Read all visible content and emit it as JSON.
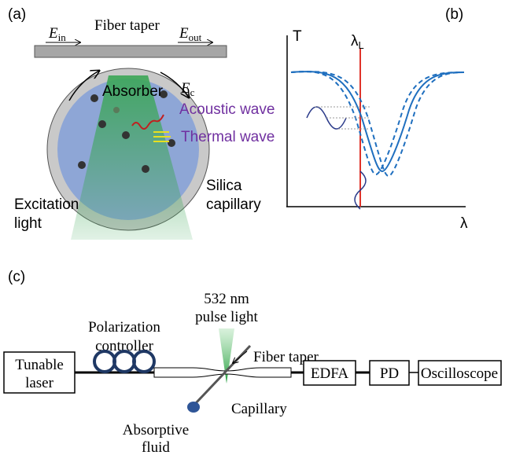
{
  "panel_a": {
    "label": "(a)",
    "fiber_taper": "Fiber taper",
    "e_in": {
      "symbol": "E",
      "subscript": "in"
    },
    "e_out": {
      "symbol": "E",
      "subscript": "out"
    },
    "e_c": {
      "symbol": "E",
      "subscript": "c"
    },
    "absorber": "Absorber",
    "acoustic_wave": "Acoustic wave",
    "thermal_wave": "Thermal wave",
    "excitation_light": [
      "Excitation",
      "light"
    ],
    "silica_capillary": [
      "Silica",
      "capillary"
    ]
  },
  "panel_b": {
    "label": "(b)",
    "y_axis": "T",
    "x_axis": "λ",
    "laser_line": {
      "symbol": "λ",
      "subscript": "L"
    }
  },
  "panel_c": {
    "label": "(c)",
    "pulse_light": [
      "532 nm",
      "pulse light"
    ],
    "polarization_controller": [
      "Polarization",
      "controller"
    ],
    "tunable_laser": [
      "Tunable",
      "laser"
    ],
    "fiber_taper": "Fiber taper",
    "edfa": "EDFA",
    "pd": "PD",
    "oscilloscope": "Oscilloscope",
    "capillary": "Capillary",
    "absorptive_fluid": [
      "Absorptive",
      "fluid"
    ]
  }
}
